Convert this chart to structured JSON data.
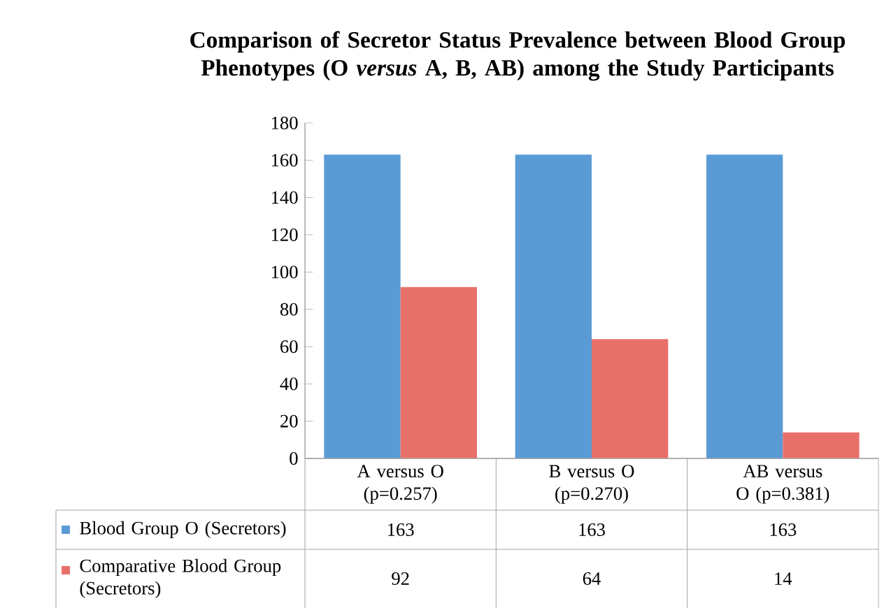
{
  "chart_data": {
    "type": "bar",
    "title": "Comparison of Secretor Status Prevalence between Blood Group Phenotypes (O *versus* A, B, AB) among the Study Participants",
    "categories": [
      "A versus O (p=0.257)",
      "B versus O (p=0.270)",
      "AB versus O (p=0.381)"
    ],
    "series": [
      {
        "name": "Blood Group O (Secretors)",
        "color": "#5b9bd5",
        "values": [
          163,
          163,
          163
        ]
      },
      {
        "name": "Comparative Blood Group (Secretors)",
        "color": "#e8706b",
        "values": [
          92,
          64,
          14
        ]
      }
    ],
    "ylim": [
      0,
      180
    ],
    "yticks": [
      0,
      20,
      40,
      60,
      80,
      100,
      120,
      140,
      160,
      180
    ],
    "data_labels": true,
    "legend": "bottom"
  }
}
